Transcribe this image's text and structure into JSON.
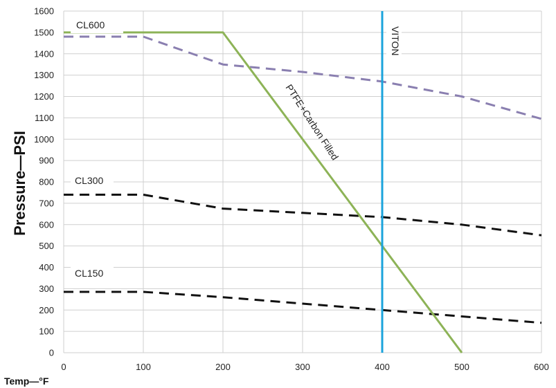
{
  "chart_data": {
    "type": "line",
    "xlabel": "Temp—°F",
    "ylabel": "Pressure—PSI",
    "xlim": [
      0,
      600
    ],
    "ylim": [
      0,
      1600
    ],
    "xticks": [
      "0",
      "100",
      "200",
      "300",
      "400",
      "500",
      "600"
    ],
    "yticks": [
      "0",
      "100",
      "200",
      "300",
      "400",
      "500",
      "600",
      "700",
      "800",
      "900",
      "1000",
      "1100",
      "1200",
      "1300",
      "1400",
      "1500",
      "1600"
    ],
    "grid": true,
    "series": [
      {
        "name": "CL600",
        "style": "dashed",
        "color": "#8a7fb0",
        "x": [
          0,
          100,
          200,
          300,
          400,
          500,
          600
        ],
        "y": [
          1480,
          1480,
          1350,
          1315,
          1270,
          1200,
          1095
        ]
      },
      {
        "name": "CL300",
        "style": "dashed",
        "color": "#111111",
        "x": [
          0,
          100,
          200,
          300,
          400,
          500,
          600
        ],
        "y": [
          740,
          740,
          675,
          655,
          635,
          600,
          550
        ]
      },
      {
        "name": "CL150",
        "style": "dashed",
        "color": "#111111",
        "x": [
          0,
          100,
          200,
          300,
          400,
          500,
          600
        ],
        "y": [
          285,
          285,
          260,
          230,
          200,
          170,
          140
        ]
      },
      {
        "name": "PTFE+Carbon Filled",
        "style": "solid",
        "color": "#8db357",
        "x": [
          0,
          200,
          500
        ],
        "y": [
          1500,
          1500,
          0
        ]
      },
      {
        "name": "VITON",
        "style": "solid",
        "color": "#1aa3dc",
        "x": [
          400,
          400
        ],
        "y": [
          0,
          1600
        ]
      }
    ]
  }
}
